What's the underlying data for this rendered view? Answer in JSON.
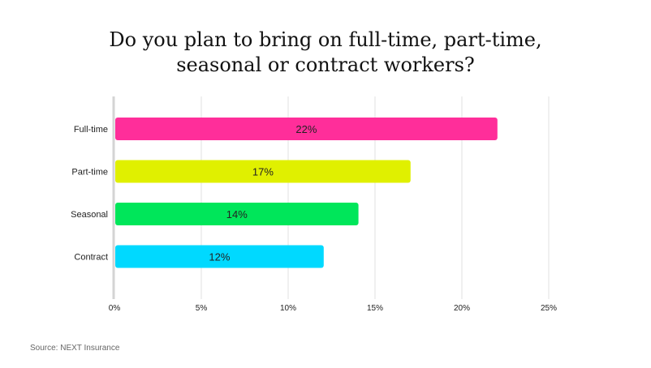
{
  "chart_data": {
    "type": "bar",
    "orientation": "horizontal",
    "title_lines": [
      "Do you plan to bring on full-time, part-time,",
      "seasonal or contract workers?"
    ],
    "categories": [
      "Full-time",
      "Part-time",
      "Seasonal",
      "Contract"
    ],
    "values": [
      22,
      17,
      14,
      12
    ],
    "data_labels": [
      "22%",
      "17%",
      "14%",
      "12%"
    ],
    "colors": [
      "#ff2e9a",
      "#e0f000",
      "#00e65a",
      "#00d9ff"
    ],
    "xlim": [
      0,
      25
    ],
    "xticks": [
      0,
      5,
      10,
      15,
      20,
      25
    ],
    "xtick_labels": [
      "0%",
      "5%",
      "10%",
      "15%",
      "20%",
      "25%"
    ],
    "grid": "vertical",
    "source": "Source: NEXT Insurance"
  }
}
